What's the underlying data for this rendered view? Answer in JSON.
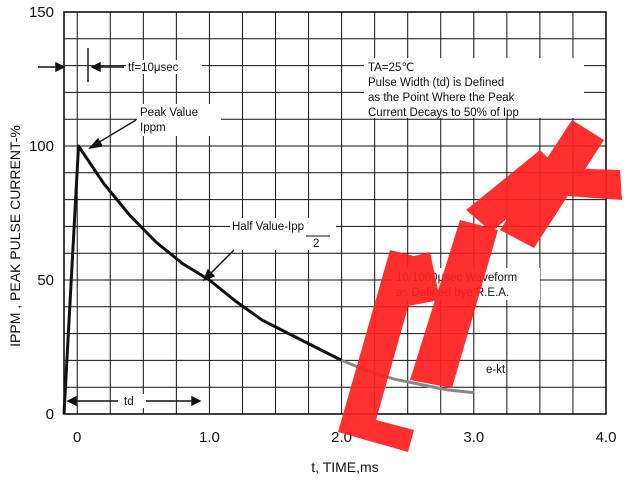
{
  "chart_data": {
    "type": "line",
    "title": "",
    "xlabel": "t, TIME,ms",
    "ylabel": "IPPM , PEAK PULSE CURRENT-%",
    "xlim": [
      -0.1,
      4.0
    ],
    "ylim": [
      0,
      150
    ],
    "x_ticks": [
      "0",
      "1.0",
      "2.0",
      "3.0",
      "4.0"
    ],
    "y_ticks": [
      "0",
      "50",
      "100",
      "150"
    ],
    "grid": true,
    "series": [
      {
        "x": [
          -0.1,
          0.01,
          0.2,
          0.4,
          0.6,
          0.8,
          1.0,
          1.2,
          1.4,
          1.6,
          1.8,
          2.0,
          2.2,
          2.4,
          2.6,
          2.8,
          3.0
        ],
        "values": [
          0,
          100,
          86,
          74,
          64,
          56,
          50,
          42,
          35,
          30,
          25,
          20,
          16,
          13,
          11,
          9,
          8
        ]
      }
    ],
    "annotations": {
      "tf": "tf=10μsec",
      "ta": "TA=25℃",
      "pulse_def_1": "Pulse Width (td) is Defined",
      "pulse_def_2": "as the Point Where the Peak",
      "pulse_def_3": "Current Decays to 50% of Ipp",
      "peak_1": "Peak Value",
      "peak_2": "Ippm",
      "half_1": "Half Value-Ipp",
      "half_2": "2",
      "waveform_1": "10/1000μsec Waveform",
      "waveform_2": "as Defined bye R.E.A.",
      "ekt": "e-kt",
      "td": "td"
    },
    "colors": {
      "line": "#111111",
      "tail": "#888888",
      "grid": "#111111",
      "watermark": "#ff1a1a"
    }
  },
  "watermark": {
    "text": "EEPW"
  }
}
